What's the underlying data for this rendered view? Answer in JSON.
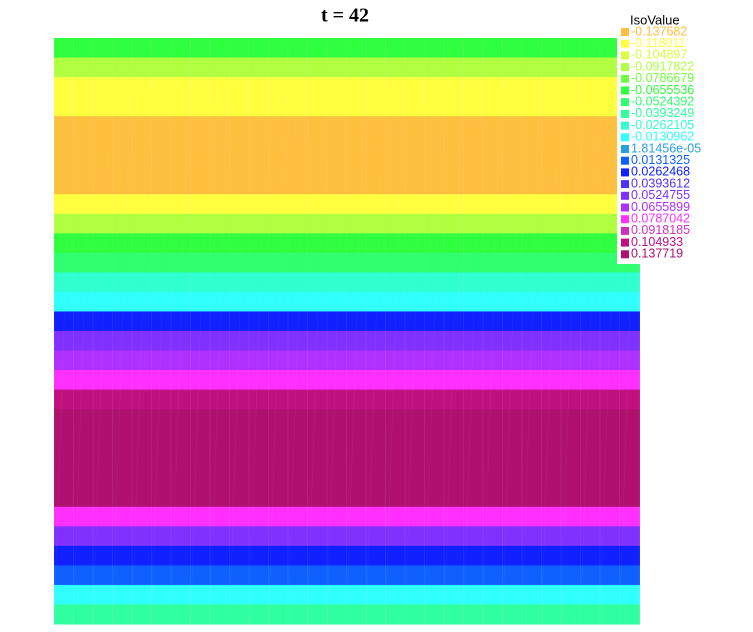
{
  "chart_data": {
    "type": "isovalue",
    "title": "t = 42",
    "legend_title": "IsoValue",
    "levels": [
      -0.137682,
      -0.118011,
      -0.104897,
      -0.0917822,
      -0.0786679,
      -0.0655536,
      -0.0524392,
      -0.0393249,
      -0.0262105,
      -0.0130962,
      {
        "value": 1.81456e-05,
        "label": "1.81456e-05"
      },
      0.0131325,
      0.0262468,
      0.0393612,
      0.0524755,
      0.0655899,
      0.0787042,
      0.0918185,
      0.104933,
      0.137719
    ],
    "colors": [
      "#ffc040",
      "#ffff40",
      "#d8ff40",
      "#b0ff40",
      "#70ff40",
      "#30ff40",
      "#30ff70",
      "#30ffa0",
      "#30ffd0",
      "#30ffff",
      "#2a9fe0",
      "#1060ff",
      "#1020ff",
      "#5030ff",
      "#8030ff",
      "#b030ff",
      "#ff30ff",
      "#d030c0",
      "#c01080",
      "#b01070"
    ],
    "field_rows": [
      -0.0655536,
      -0.0917822,
      -0.118011,
      -0.118011,
      -0.137682,
      -0.137682,
      -0.137682,
      -0.137682,
      -0.118011,
      -0.0917822,
      -0.0655536,
      -0.0524392,
      -0.0262105,
      -0.0130962,
      0.0262468,
      0.0524755,
      0.0655899,
      0.0787042,
      0.104933,
      0.137719,
      0.137719,
      0.137719,
      0.137719,
      0.137719,
      0.0787042,
      0.0524755,
      0.0262468,
      0.0131325,
      -0.0130962,
      -0.0393249
    ]
  }
}
